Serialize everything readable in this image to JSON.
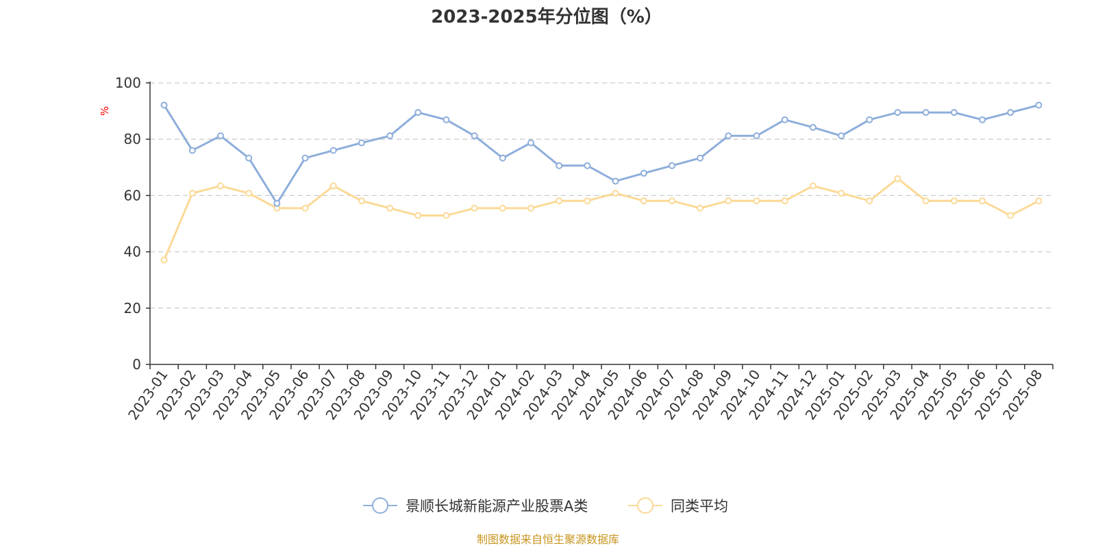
{
  "chart_data": {
    "type": "line",
    "title": "2023-2025年分位图（%）",
    "ylabel": "%",
    "ylim": [
      0,
      100
    ],
    "yticks": [
      0,
      20,
      40,
      60,
      80,
      100
    ],
    "grid": true,
    "legend_position": "bottom",
    "categories": [
      "2023-01",
      "2023-02",
      "2023-03",
      "2023-04",
      "2023-05",
      "2023-06",
      "2023-07",
      "2023-08",
      "2023-09",
      "2023-10",
      "2023-11",
      "2023-12",
      "2024-01",
      "2024-02",
      "2024-03",
      "2024-04",
      "2024-05",
      "2024-06",
      "2024-07",
      "2024-08",
      "2024-09",
      "2024-10",
      "2024-11",
      "2024-12",
      "2025-01",
      "2025-02",
      "2025-03",
      "2025-04",
      "2025-05",
      "2025-06",
      "2025-07",
      "2025-08"
    ],
    "series": [
      {
        "name": "景顺长城新能源产业股票A类",
        "color": "#8eaedb",
        "values": [
          92.1,
          76.0,
          81.2,
          73.3,
          57.2,
          73.3,
          76.0,
          78.7,
          81.2,
          89.5,
          86.9,
          81.2,
          73.3,
          78.7,
          70.6,
          70.6,
          65.1,
          67.9,
          70.6,
          73.3,
          81.2,
          81.2,
          86.9,
          84.2,
          81.2,
          86.9,
          89.5,
          89.5,
          89.5,
          86.9,
          89.5,
          92.1
        ]
      },
      {
        "name": "同类平均",
        "color": "#fbd995",
        "values": [
          37.1,
          60.8,
          63.4,
          60.8,
          55.5,
          55.5,
          63.4,
          58.1,
          55.5,
          52.9,
          52.9,
          55.5,
          55.5,
          55.5,
          58.1,
          58.1,
          60.8,
          58.1,
          58.1,
          55.5,
          58.1,
          58.1,
          58.1,
          63.4,
          60.8,
          58.1,
          66.0,
          58.1,
          58.1,
          58.1,
          52.9,
          58.1
        ]
      }
    ]
  },
  "source": {
    "text": "制图数据来自恒生聚源数据库",
    "color": "#c8951f"
  },
  "axis_color": "#333333",
  "grid_color": "#cccccc",
  "unit_color": "#ff0000"
}
